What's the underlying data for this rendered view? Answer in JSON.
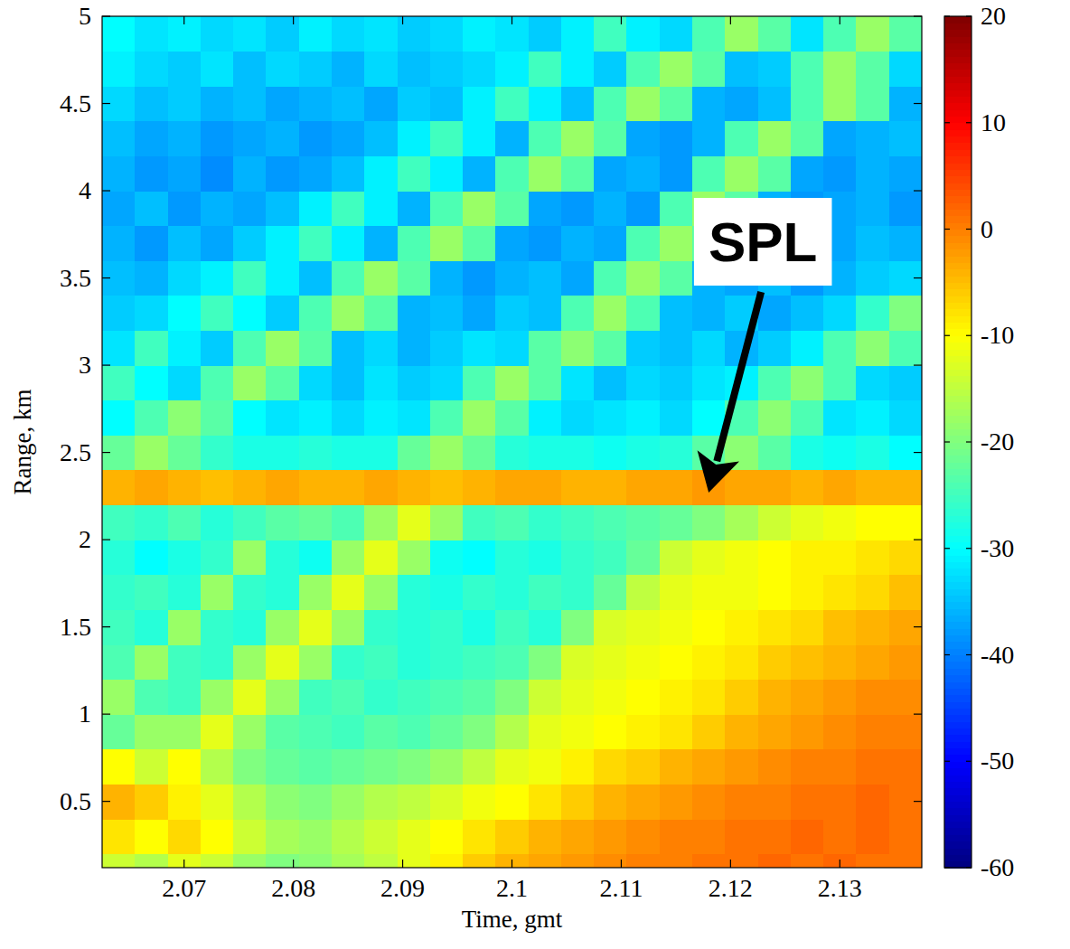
{
  "chart_data": {
    "type": "heatmap",
    "x_label": "Time, gmt",
    "y_label": "Range, km",
    "xlim": [
      2.0625,
      2.1375
    ],
    "ylim": [
      0.12,
      5.0
    ],
    "xticks": [
      2.07,
      2.08,
      2.09,
      2.1,
      2.11,
      2.12,
      2.13
    ],
    "yticks": [
      0.5,
      1,
      1.5,
      2,
      2.5,
      3,
      3.5,
      4,
      4.5,
      5
    ],
    "zlim": [
      -60,
      20
    ],
    "zticks": [
      -60,
      -50,
      -40,
      -30,
      -20,
      -10,
      0,
      10,
      20
    ],
    "grid": false,
    "annotations": [
      {
        "text": "SPL",
        "x": 2.118,
        "y": 2.27
      }
    ],
    "x": [
      2.064,
      2.067,
      2.07,
      2.073,
      2.076,
      2.079,
      2.082,
      2.085,
      2.088,
      2.091,
      2.094,
      2.097,
      2.1,
      2.103,
      2.106,
      2.109,
      2.112,
      2.115,
      2.118,
      2.121,
      2.124,
      2.127,
      2.13,
      2.133,
      2.136
    ],
    "y": [
      0.1,
      0.3,
      0.5,
      0.7,
      0.9,
      1.1,
      1.3,
      1.5,
      1.7,
      1.9,
      2.1,
      2.3,
      2.5,
      2.7,
      2.9,
      3.1,
      3.3,
      3.5,
      3.7,
      3.9,
      4.1,
      4.3,
      4.5,
      4.7,
      4.9
    ],
    "z": [
      [
        -14,
        -16,
        -12,
        -14,
        -18,
        -20,
        -19,
        -17,
        -15,
        -12,
        -9,
        -6,
        -4,
        -3,
        -2,
        -1,
        0,
        0,
        1,
        1,
        2,
        1,
        2,
        1,
        1
      ],
      [
        -8,
        -10,
        -7,
        -10,
        -14,
        -17,
        -18,
        -16,
        -14,
        -12,
        -10,
        -8,
        -6,
        -4,
        -3,
        -2,
        -1,
        0,
        0,
        1,
        1,
        2,
        1,
        2,
        1
      ],
      [
        -4,
        -6,
        -9,
        -12,
        -16,
        -19,
        -20,
        -18,
        -16,
        -15,
        -13,
        -11,
        -10,
        -8,
        -6,
        -4,
        -3,
        -2,
        -1,
        0,
        0,
        1,
        1,
        2,
        1
      ],
      [
        -10,
        -14,
        -10,
        -16,
        -20,
        -22,
        -23,
        -22,
        -21,
        -20,
        -18,
        -15,
        -12,
        -11,
        -9,
        -7,
        -6,
        -4,
        -3,
        -2,
        -1,
        0,
        0,
        1,
        1
      ],
      [
        -22,
        -18,
        -18,
        -12,
        -18,
        -23,
        -24,
        -25,
        -23,
        -24,
        -22,
        -20,
        -16,
        -12,
        -11,
        -10,
        -9,
        -8,
        -6,
        -4,
        -3,
        -2,
        -1,
        0,
        0
      ],
      [
        -18,
        -24,
        -25,
        -18,
        -12,
        -18,
        -25,
        -24,
        -26,
        -25,
        -24,
        -23,
        -20,
        -14,
        -12,
        -11,
        -10,
        -9,
        -8,
        -6,
        -4,
        -3,
        -2,
        -1,
        -1
      ],
      [
        -24,
        -18,
        -25,
        -26,
        -18,
        -12,
        -18,
        -26,
        -25,
        -27,
        -26,
        -25,
        -24,
        -20,
        -13,
        -12,
        -11,
        -10,
        -9,
        -8,
        -6,
        -5,
        -4,
        -3,
        -2
      ],
      [
        -25,
        -27,
        -18,
        -26,
        -27,
        -18,
        -12,
        -18,
        -26,
        -27,
        -26,
        -28,
        -25,
        -27,
        -20,
        -13,
        -12,
        -11,
        -10,
        -9,
        -8,
        -7,
        -5,
        -4,
        -3
      ],
      [
        -26,
        -25,
        -27,
        -18,
        -26,
        -27,
        -18,
        -12,
        -18,
        -27,
        -28,
        -26,
        -27,
        -25,
        -26,
        -22,
        -15,
        -12,
        -11,
        -11,
        -10,
        -9,
        -8,
        -7,
        -5
      ],
      [
        -27,
        -30,
        -28,
        -26,
        -18,
        -27,
        -29,
        -18,
        -12,
        -18,
        -29,
        -30,
        -27,
        -28,
        -26,
        -25,
        -22,
        -14,
        -12,
        -11,
        -10,
        -9,
        -9,
        -8,
        -7
      ],
      [
        -25,
        -26,
        -24,
        -27,
        -25,
        -23,
        -22,
        -24,
        -18,
        -12,
        -18,
        -25,
        -24,
        -26,
        -25,
        -24,
        -23,
        -22,
        -20,
        -17,
        -14,
        -12,
        -11,
        -10,
        -10
      ],
      [
        -4,
        -3,
        -4,
        -5,
        -4,
        -3,
        -4,
        -4,
        -3,
        -4,
        -5,
        -4,
        -3,
        -3,
        -4,
        -4,
        -3,
        -3,
        -2,
        -3,
        -3,
        -4,
        -3,
        -4,
        -4
      ],
      [
        -22,
        -18,
        -22,
        -26,
        -28,
        -28,
        -27,
        -28,
        -28,
        -22,
        -18,
        -22,
        -27,
        -28,
        -28,
        -29,
        -28,
        -27,
        -23,
        -19,
        -23,
        -28,
        -29,
        -28,
        -30
      ],
      [
        -30,
        -24,
        -19,
        -23,
        -30,
        -32,
        -31,
        -33,
        -31,
        -32,
        -24,
        -18,
        -23,
        -31,
        -33,
        -32,
        -31,
        -33,
        -30,
        -24,
        -19,
        -24,
        -32,
        -31,
        -33
      ],
      [
        -25,
        -30,
        -33,
        -24,
        -18,
        -23,
        -33,
        -35,
        -32,
        -34,
        -33,
        -24,
        -18,
        -23,
        -32,
        -35,
        -33,
        -34,
        -32,
        -31,
        -24,
        -19,
        -24,
        -33,
        -34
      ],
      [
        -32,
        -25,
        -31,
        -34,
        -24,
        -18,
        -23,
        -35,
        -33,
        -36,
        -34,
        -32,
        -33,
        -23,
        -19,
        -23,
        -34,
        -35,
        -33,
        -36,
        -34,
        -31,
        -24,
        -19,
        -24
      ],
      [
        -34,
        -33,
        -30,
        -25,
        -30,
        -34,
        -24,
        -18,
        -23,
        -36,
        -35,
        -37,
        -34,
        -35,
        -24,
        -18,
        -24,
        -35,
        -36,
        -34,
        -37,
        -35,
        -33,
        -26,
        -20
      ],
      [
        -35,
        -36,
        -33,
        -31,
        -25,
        -31,
        -35,
        -24,
        -18,
        -23,
        -36,
        -38,
        -36,
        -35,
        -37,
        -24,
        -18,
        -23,
        -36,
        -37,
        -35,
        -38,
        -36,
        -34,
        -33
      ],
      [
        -36,
        -38,
        -35,
        -37,
        -34,
        -31,
        -25,
        -31,
        -36,
        -24,
        -18,
        -23,
        -37,
        -38,
        -36,
        -37,
        -24,
        -18,
        -23,
        -37,
        -36,
        -38,
        -37,
        -35,
        -36
      ],
      [
        -37,
        -35,
        -38,
        -36,
        -37,
        -35,
        -31,
        -25,
        -31,
        -36,
        -24,
        -18,
        -23,
        -37,
        -38,
        -36,
        -38,
        -24,
        -18,
        -23,
        -36,
        -38,
        -37,
        -36,
        -38
      ],
      [
        -36,
        -38,
        -37,
        -39,
        -36,
        -38,
        -37,
        -35,
        -31,
        -25,
        -31,
        -36,
        -24,
        -18,
        -23,
        -37,
        -36,
        -38,
        -24,
        -18,
        -23,
        -37,
        -38,
        -36,
        -37
      ],
      [
        -35,
        -37,
        -36,
        -38,
        -37,
        -36,
        -38,
        -37,
        -35,
        -31,
        -25,
        -31,
        -36,
        -24,
        -18,
        -23,
        -37,
        -38,
        -36,
        -24,
        -18,
        -23,
        -37,
        -36,
        -35
      ],
      [
        -33,
        -35,
        -34,
        -36,
        -35,
        -37,
        -36,
        -35,
        -37,
        -34,
        -35,
        -31,
        -25,
        -31,
        -35,
        -24,
        -18,
        -23,
        -36,
        -37,
        -35,
        -24,
        -18,
        -23,
        -36
      ],
      [
        -31,
        -33,
        -34,
        -32,
        -35,
        -33,
        -34,
        -36,
        -33,
        -35,
        -34,
        -33,
        -31,
        -25,
        -31,
        -34,
        -24,
        -18,
        -23,
        -35,
        -34,
        -24,
        -18,
        -23,
        -33
      ],
      [
        -30,
        -32,
        -31,
        -33,
        -32,
        -34,
        -31,
        -33,
        -32,
        -34,
        -33,
        -31,
        -32,
        -34,
        -31,
        -25,
        -31,
        -33,
        -24,
        -18,
        -23,
        -32,
        -24,
        -18,
        -23
      ]
    ]
  }
}
